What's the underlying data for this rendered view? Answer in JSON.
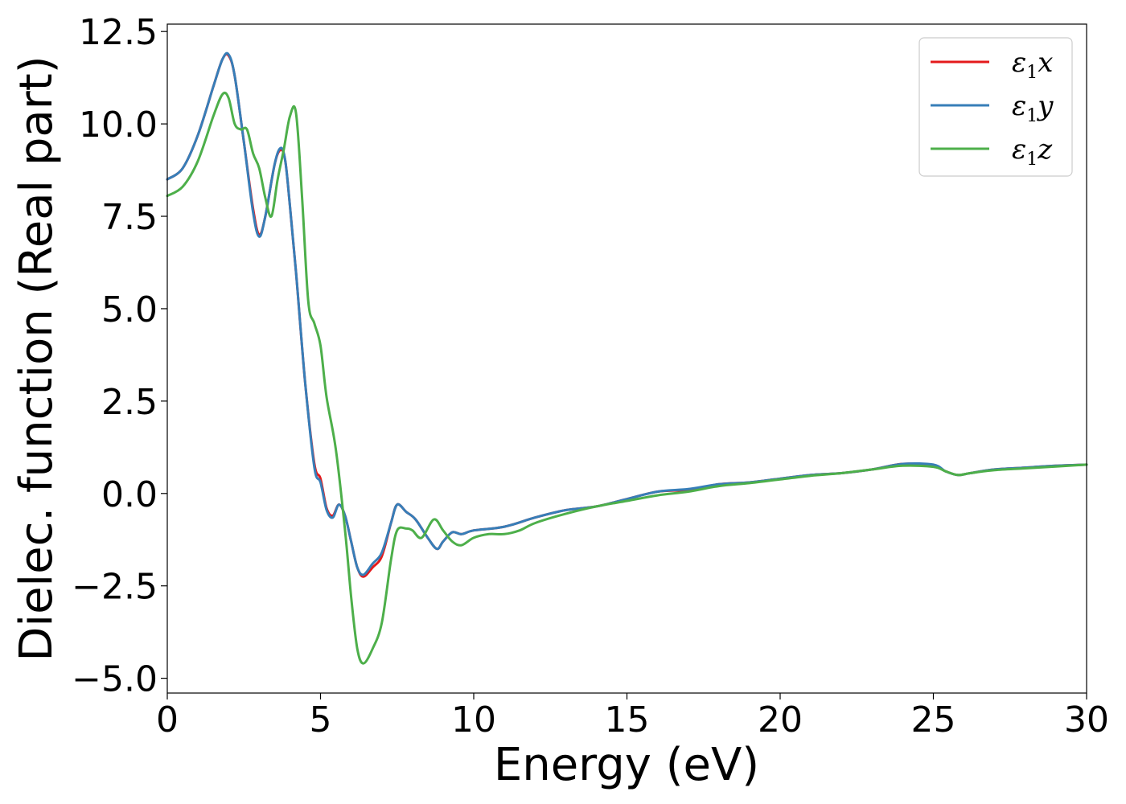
{
  "chart_data": {
    "type": "line",
    "xlabel": "Energy (eV)",
    "ylabel": "Dielec. function (Real part)",
    "xlim": [
      0,
      30
    ],
    "ylim": [
      -5.4,
      12.7
    ],
    "xticks": [
      0,
      5,
      10,
      15,
      20,
      25,
      30
    ],
    "xtick_labels": [
      "0",
      "5",
      "10",
      "15",
      "20",
      "25",
      "30"
    ],
    "yticks": [
      -5.0,
      -2.5,
      0.0,
      2.5,
      5.0,
      7.5,
      10.0,
      12.5
    ],
    "ytick_labels": [
      "−5.0",
      "−2.5",
      "0.0",
      "2.5",
      "5.0",
      "7.5",
      "10.0",
      "12.5"
    ],
    "grid": false,
    "legend_position": "top-right",
    "series": [
      {
        "name": "ε₁x",
        "symbol": "ε",
        "subscript": "1",
        "axis": "x",
        "color": "#e41a1c",
        "x": [
          0,
          0.5,
          1.0,
          1.5,
          1.8,
          2.0,
          2.2,
          2.5,
          2.8,
          3.0,
          3.2,
          3.5,
          3.7,
          3.85,
          4.0,
          4.2,
          4.5,
          4.8,
          5.0,
          5.2,
          5.4,
          5.6,
          5.8,
          6.0,
          6.2,
          6.4,
          6.7,
          7.0,
          7.3,
          7.5,
          7.8,
          8.1,
          8.5,
          8.8,
          9.0,
          9.3,
          9.6,
          10.0,
          11.0,
          12.0,
          13.0,
          14.0,
          15.0,
          16.0,
          17.0,
          18.0,
          19.0,
          20.0,
          21.0,
          22.0,
          23.0,
          24.0,
          25.0,
          25.4,
          25.8,
          26.2,
          27.0,
          28.0,
          29.0,
          30.0
        ],
        "values": [
          8.5,
          8.8,
          9.7,
          11.0,
          11.75,
          11.85,
          11.3,
          9.5,
          7.7,
          7.0,
          7.5,
          8.9,
          9.3,
          9.0,
          7.8,
          6.0,
          3.0,
          0.8,
          0.4,
          -0.4,
          -0.6,
          -0.3,
          -0.6,
          -1.3,
          -2.0,
          -2.25,
          -2.0,
          -1.7,
          -0.8,
          -0.3,
          -0.5,
          -0.7,
          -1.2,
          -1.5,
          -1.3,
          -1.05,
          -1.1,
          -1.0,
          -0.9,
          -0.65,
          -0.45,
          -0.35,
          -0.15,
          0.05,
          0.1,
          0.25,
          0.3,
          0.4,
          0.5,
          0.55,
          0.65,
          0.8,
          0.75,
          0.6,
          0.5,
          0.55,
          0.65,
          0.7,
          0.75,
          0.78
        ]
      },
      {
        "name": "ε₁y",
        "symbol": "ε",
        "subscript": "1",
        "axis": "y",
        "color": "#377eb8",
        "x": [
          0,
          0.5,
          1.0,
          1.5,
          1.8,
          2.0,
          2.2,
          2.5,
          2.8,
          3.0,
          3.2,
          3.5,
          3.7,
          3.85,
          4.0,
          4.2,
          4.5,
          4.8,
          5.0,
          5.2,
          5.4,
          5.6,
          5.8,
          6.0,
          6.2,
          6.4,
          6.7,
          7.0,
          7.3,
          7.5,
          7.8,
          8.1,
          8.5,
          8.8,
          9.0,
          9.3,
          9.6,
          10.0,
          11.0,
          12.0,
          13.0,
          14.0,
          15.0,
          16.0,
          17.0,
          18.0,
          19.0,
          20.0,
          21.0,
          22.0,
          23.0,
          24.0,
          25.0,
          25.4,
          25.8,
          26.2,
          27.0,
          28.0,
          29.0,
          30.0
        ],
        "values": [
          8.5,
          8.8,
          9.7,
          11.0,
          11.75,
          11.88,
          11.3,
          9.5,
          7.6,
          6.95,
          7.5,
          8.9,
          9.35,
          9.0,
          7.8,
          6.0,
          3.0,
          0.7,
          0.3,
          -0.45,
          -0.65,
          -0.3,
          -0.6,
          -1.3,
          -2.0,
          -2.2,
          -1.9,
          -1.6,
          -0.8,
          -0.3,
          -0.5,
          -0.7,
          -1.2,
          -1.5,
          -1.3,
          -1.05,
          -1.1,
          -1.0,
          -0.9,
          -0.65,
          -0.45,
          -0.35,
          -0.15,
          0.05,
          0.12,
          0.25,
          0.3,
          0.4,
          0.5,
          0.55,
          0.65,
          0.8,
          0.78,
          0.6,
          0.5,
          0.55,
          0.65,
          0.7,
          0.75,
          0.78
        ]
      },
      {
        "name": "ε₁z",
        "symbol": "ε",
        "subscript": "1",
        "axis": "z",
        "color": "#4daf4a",
        "x": [
          0,
          0.5,
          1.0,
          1.5,
          1.8,
          2.0,
          2.2,
          2.4,
          2.6,
          2.8,
          3.0,
          3.2,
          3.4,
          3.6,
          3.8,
          4.0,
          4.2,
          4.4,
          4.6,
          4.8,
          5.0,
          5.2,
          5.5,
          5.8,
          6.0,
          6.2,
          6.4,
          6.7,
          7.0,
          7.3,
          7.5,
          7.8,
          8.0,
          8.3,
          8.7,
          9.0,
          9.3,
          9.6,
          10.0,
          10.5,
          11.0,
          11.5,
          12.0,
          13.0,
          14.0,
          15.0,
          16.0,
          17.0,
          18.0,
          19.0,
          20.0,
          21.0,
          22.0,
          23.0,
          24.0,
          25.0,
          25.4,
          25.8,
          26.2,
          27.0,
          28.0,
          29.0,
          30.0
        ],
        "values": [
          8.05,
          8.3,
          9.0,
          10.2,
          10.8,
          10.7,
          10.0,
          9.85,
          9.85,
          9.2,
          8.8,
          8.0,
          7.5,
          8.5,
          9.3,
          10.2,
          10.3,
          8.0,
          5.2,
          4.6,
          4.0,
          2.6,
          1.2,
          -1.0,
          -2.8,
          -4.2,
          -4.6,
          -4.2,
          -3.5,
          -1.8,
          -1.0,
          -0.95,
          -1.0,
          -1.2,
          -0.7,
          -1.0,
          -1.3,
          -1.4,
          -1.2,
          -1.1,
          -1.1,
          -1.0,
          -0.8,
          -0.55,
          -0.35,
          -0.2,
          -0.05,
          0.05,
          0.2,
          0.28,
          0.38,
          0.48,
          0.55,
          0.65,
          0.75,
          0.72,
          0.6,
          0.5,
          0.55,
          0.63,
          0.68,
          0.73,
          0.78
        ]
      }
    ]
  }
}
